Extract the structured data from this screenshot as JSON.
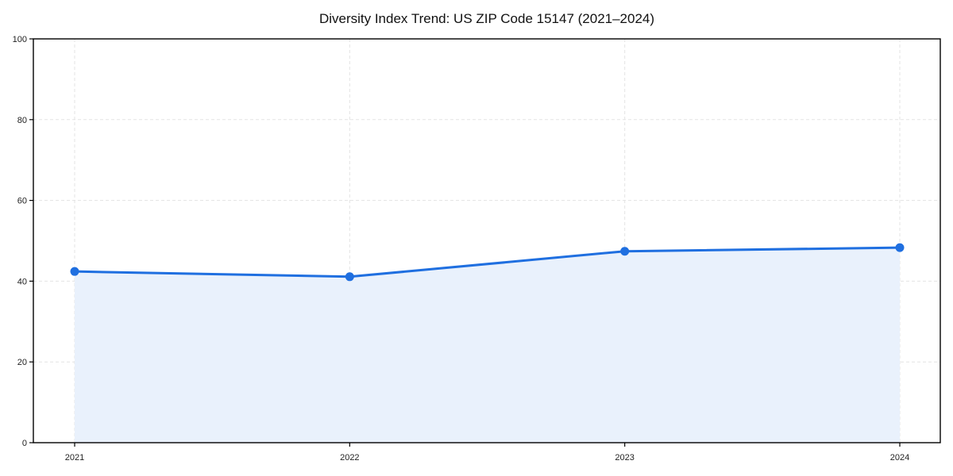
{
  "chart_data": {
    "type": "area",
    "title": "Diversity Index Trend: US ZIP Code 15147 (2021–2024)",
    "series_name": "Diversity Index",
    "categories": [
      "2021",
      "2022",
      "2023",
      "2024"
    ],
    "values": [
      42.4,
      41.1,
      47.4,
      48.3
    ],
    "xlabel": "",
    "ylabel": "",
    "ylim": [
      0,
      100
    ],
    "yticks": [
      0,
      20,
      40,
      60,
      80,
      100
    ],
    "grid": true,
    "grid_style": "dashed",
    "legend_position": "none",
    "colors": {
      "line": "#1f6fe0",
      "marker": "#1f6fe0",
      "fill": "#e9f1fc",
      "grid": "#e3e3e3",
      "axis": "#000000",
      "tick_label": "#222222",
      "title": "#111111",
      "background": "#ffffff"
    }
  }
}
